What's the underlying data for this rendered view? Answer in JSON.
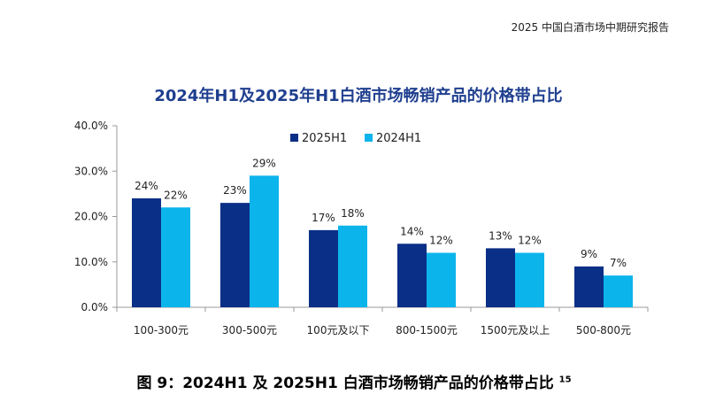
{
  "header": {
    "report_title": "2025 中国白酒市场中期研究报告"
  },
  "caption": {
    "text": "图 9：2024H1 及 2025H1 白酒市场畅销产品的价格带占比",
    "footnote": "15"
  },
  "chart_data": {
    "type": "bar",
    "title": "2024年H1及2025年H1白酒市场畅销产品的价格带占比",
    "xlabel": "",
    "ylabel": "",
    "categories": [
      "100-300元",
      "300-500元",
      "100元及以下",
      "800-1500元",
      "1500元及以上",
      "500-800元"
    ],
    "series": [
      {
        "name": "2025H1",
        "values": [
          24,
          23,
          17,
          14,
          13,
          9
        ],
        "labels": [
          "24%",
          "23%",
          "17%",
          "14%",
          "13%",
          "9%"
        ],
        "color": "#0a2f87"
      },
      {
        "name": "2024H1",
        "values": [
          22,
          29,
          18,
          12,
          12,
          7
        ],
        "labels": [
          "22%",
          "29%",
          "18%",
          "12%",
          "12%",
          "7%"
        ],
        "color": "#0cb4ec"
      }
    ],
    "ylim": [
      0,
      40
    ],
    "yticks": [
      0,
      10,
      20,
      30,
      40
    ],
    "ytick_labels": [
      "0.0%",
      "10.0%",
      "20.0%",
      "30.0%",
      "40.0%"
    ],
    "grid": false,
    "legend_position": "top-left"
  }
}
